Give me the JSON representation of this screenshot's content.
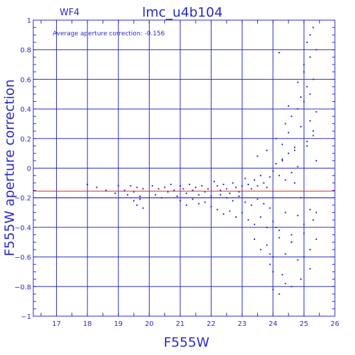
{
  "chart_data": {
    "type": "scatter",
    "title": "lmc_u4b104",
    "detector_label": "WF4",
    "xlabel": "F555W",
    "ylabel": "F555W aperture correction",
    "annotation": "Average aperture correction: -0.156",
    "xlim": [
      16.25,
      26
    ],
    "ylim": [
      -1,
      1
    ],
    "x_ticks": [
      17,
      18,
      19,
      20,
      21,
      22,
      23,
      24,
      25,
      26
    ],
    "y_ticks": [
      -1,
      -0.8,
      -0.6,
      -0.4,
      -0.2,
      0,
      0.2,
      0.4,
      0.6,
      0.8,
      1
    ],
    "x_tick_labels": [
      "17",
      "18",
      "19",
      "20",
      "21",
      "22",
      "23",
      "24",
      "25",
      "26"
    ],
    "y_tick_labels": [
      "−1",
      "−0.8",
      "−0.6",
      "−0.4",
      "−0.2",
      "0",
      "0.2",
      "0.4",
      "0.6",
      "0.8",
      "1"
    ],
    "grid": true,
    "reference_lines": [
      {
        "y": -0.156,
        "color": "#e02020"
      },
      {
        "y": -0.2,
        "color": "#2a2ac8"
      }
    ],
    "point_color": "#2a2ac8",
    "series": [
      {
        "x": [
          18.0,
          18.3,
          18.6,
          18.9,
          19.0,
          19.2,
          19.3,
          19.4,
          19.5,
          19.6,
          19.7,
          19.8,
          19.5,
          19.6,
          19.7,
          19.8,
          20.1,
          20.2,
          20.3,
          20.4,
          20.5,
          20.6,
          20.7,
          20.8,
          20.9,
          21.0,
          21.1,
          21.2,
          21.3,
          21.4,
          21.5,
          21.6,
          21.7,
          21.8,
          21.9,
          22.0,
          21.0,
          21.2,
          21.4,
          21.6,
          21.8,
          22.0,
          22.1,
          22.2,
          22.3,
          22.4,
          22.5,
          22.6,
          22.7,
          22.8,
          22.9,
          23.0,
          22.2,
          22.4,
          22.6,
          22.8,
          23.0,
          23.1,
          23.2,
          23.3,
          23.4,
          23.5,
          23.6,
          23.7,
          23.8,
          23.9,
          22.3,
          22.5,
          22.7,
          22.9,
          23.1,
          23.3,
          23.5,
          23.7,
          23.9,
          24.0,
          24.1,
          24.2,
          24.3,
          24.4,
          24.5,
          24.6,
          24.7,
          24.8,
          23.2,
          23.4,
          23.6,
          23.8,
          24.0,
          24.2,
          24.4,
          24.6,
          24.8,
          25.0,
          25.2,
          25.4,
          23.4,
          23.6,
          23.8,
          24.0,
          24.2,
          24.4,
          24.6,
          24.8,
          25.0,
          25.2,
          25.4,
          24.1,
          24.3,
          24.5,
          24.7,
          24.9,
          25.1,
          25.3,
          23.9,
          24.0,
          24.3,
          24.6,
          24.9,
          25.2,
          24.4,
          24.6,
          24.8,
          25.0,
          25.2,
          25.4,
          25.1,
          25.3,
          25.0,
          25.2,
          25.4,
          24.5,
          24.8,
          25.1,
          25.3,
          24.9,
          25.2,
          25.0,
          24.2,
          24.0,
          23.5,
          23.8,
          24.3,
          24.7,
          25.3,
          25.2,
          24.1,
          23.9,
          24.2,
          24.4,
          25.0,
          24.6,
          25.4,
          25.3,
          25.1,
          24.9
        ],
        "y": [
          -0.11,
          -0.13,
          -0.15,
          -0.17,
          -0.12,
          -0.15,
          -0.18,
          -0.12,
          -0.16,
          -0.13,
          -0.19,
          -0.14,
          -0.22,
          -0.25,
          -0.21,
          -0.27,
          -0.12,
          -0.18,
          -0.14,
          -0.2,
          -0.13,
          -0.16,
          -0.11,
          -0.15,
          -0.19,
          -0.12,
          -0.14,
          -0.17,
          -0.11,
          -0.15,
          -0.13,
          -0.18,
          -0.12,
          -0.16,
          -0.14,
          -0.19,
          -0.22,
          -0.25,
          -0.21,
          -0.24,
          -0.23,
          -0.26,
          -0.09,
          -0.12,
          -0.15,
          -0.11,
          -0.14,
          -0.17,
          -0.1,
          -0.13,
          -0.16,
          -0.12,
          -0.28,
          -0.31,
          -0.29,
          -0.33,
          -0.3,
          -0.07,
          -0.11,
          -0.14,
          -0.08,
          -0.12,
          -0.05,
          -0.1,
          -0.13,
          -0.06,
          -0.18,
          -0.2,
          -0.22,
          -0.19,
          -0.23,
          -0.25,
          -0.21,
          -0.24,
          -0.27,
          -0.02,
          0.03,
          -0.05,
          0.06,
          -0.08,
          0.1,
          -0.03,
          0.14,
          0.01,
          -0.35,
          -0.38,
          -0.33,
          -0.4,
          -0.36,
          -0.42,
          -0.3,
          -0.45,
          -0.32,
          -0.38,
          -0.28,
          -0.3,
          -0.48,
          -0.55,
          -0.52,
          -0.6,
          -0.47,
          -0.58,
          -0.5,
          -0.62,
          -0.44,
          -0.55,
          -0.48,
          0.2,
          0.16,
          0.24,
          0.12,
          0.28,
          0.18,
          0.22,
          -0.65,
          -0.7,
          -0.72,
          -0.8,
          -0.75,
          -0.68,
          0.3,
          0.35,
          0.4,
          0.45,
          0.5,
          0.38,
          0.55,
          0.6,
          0.65,
          0.75,
          0.8,
          0.42,
          0.58,
          0.85,
          0.95,
          0.48,
          0.9,
          0.7,
          -0.85,
          -0.82,
          0.08,
          0.12,
          0.05,
          -0.1,
          0.25,
          0.32,
          -0.4,
          -0.58,
          0.78,
          -0.78,
          -0.6,
          -0.5,
          0.05,
          -0.35,
          0.15,
          -0.2
        ]
      }
    ]
  }
}
